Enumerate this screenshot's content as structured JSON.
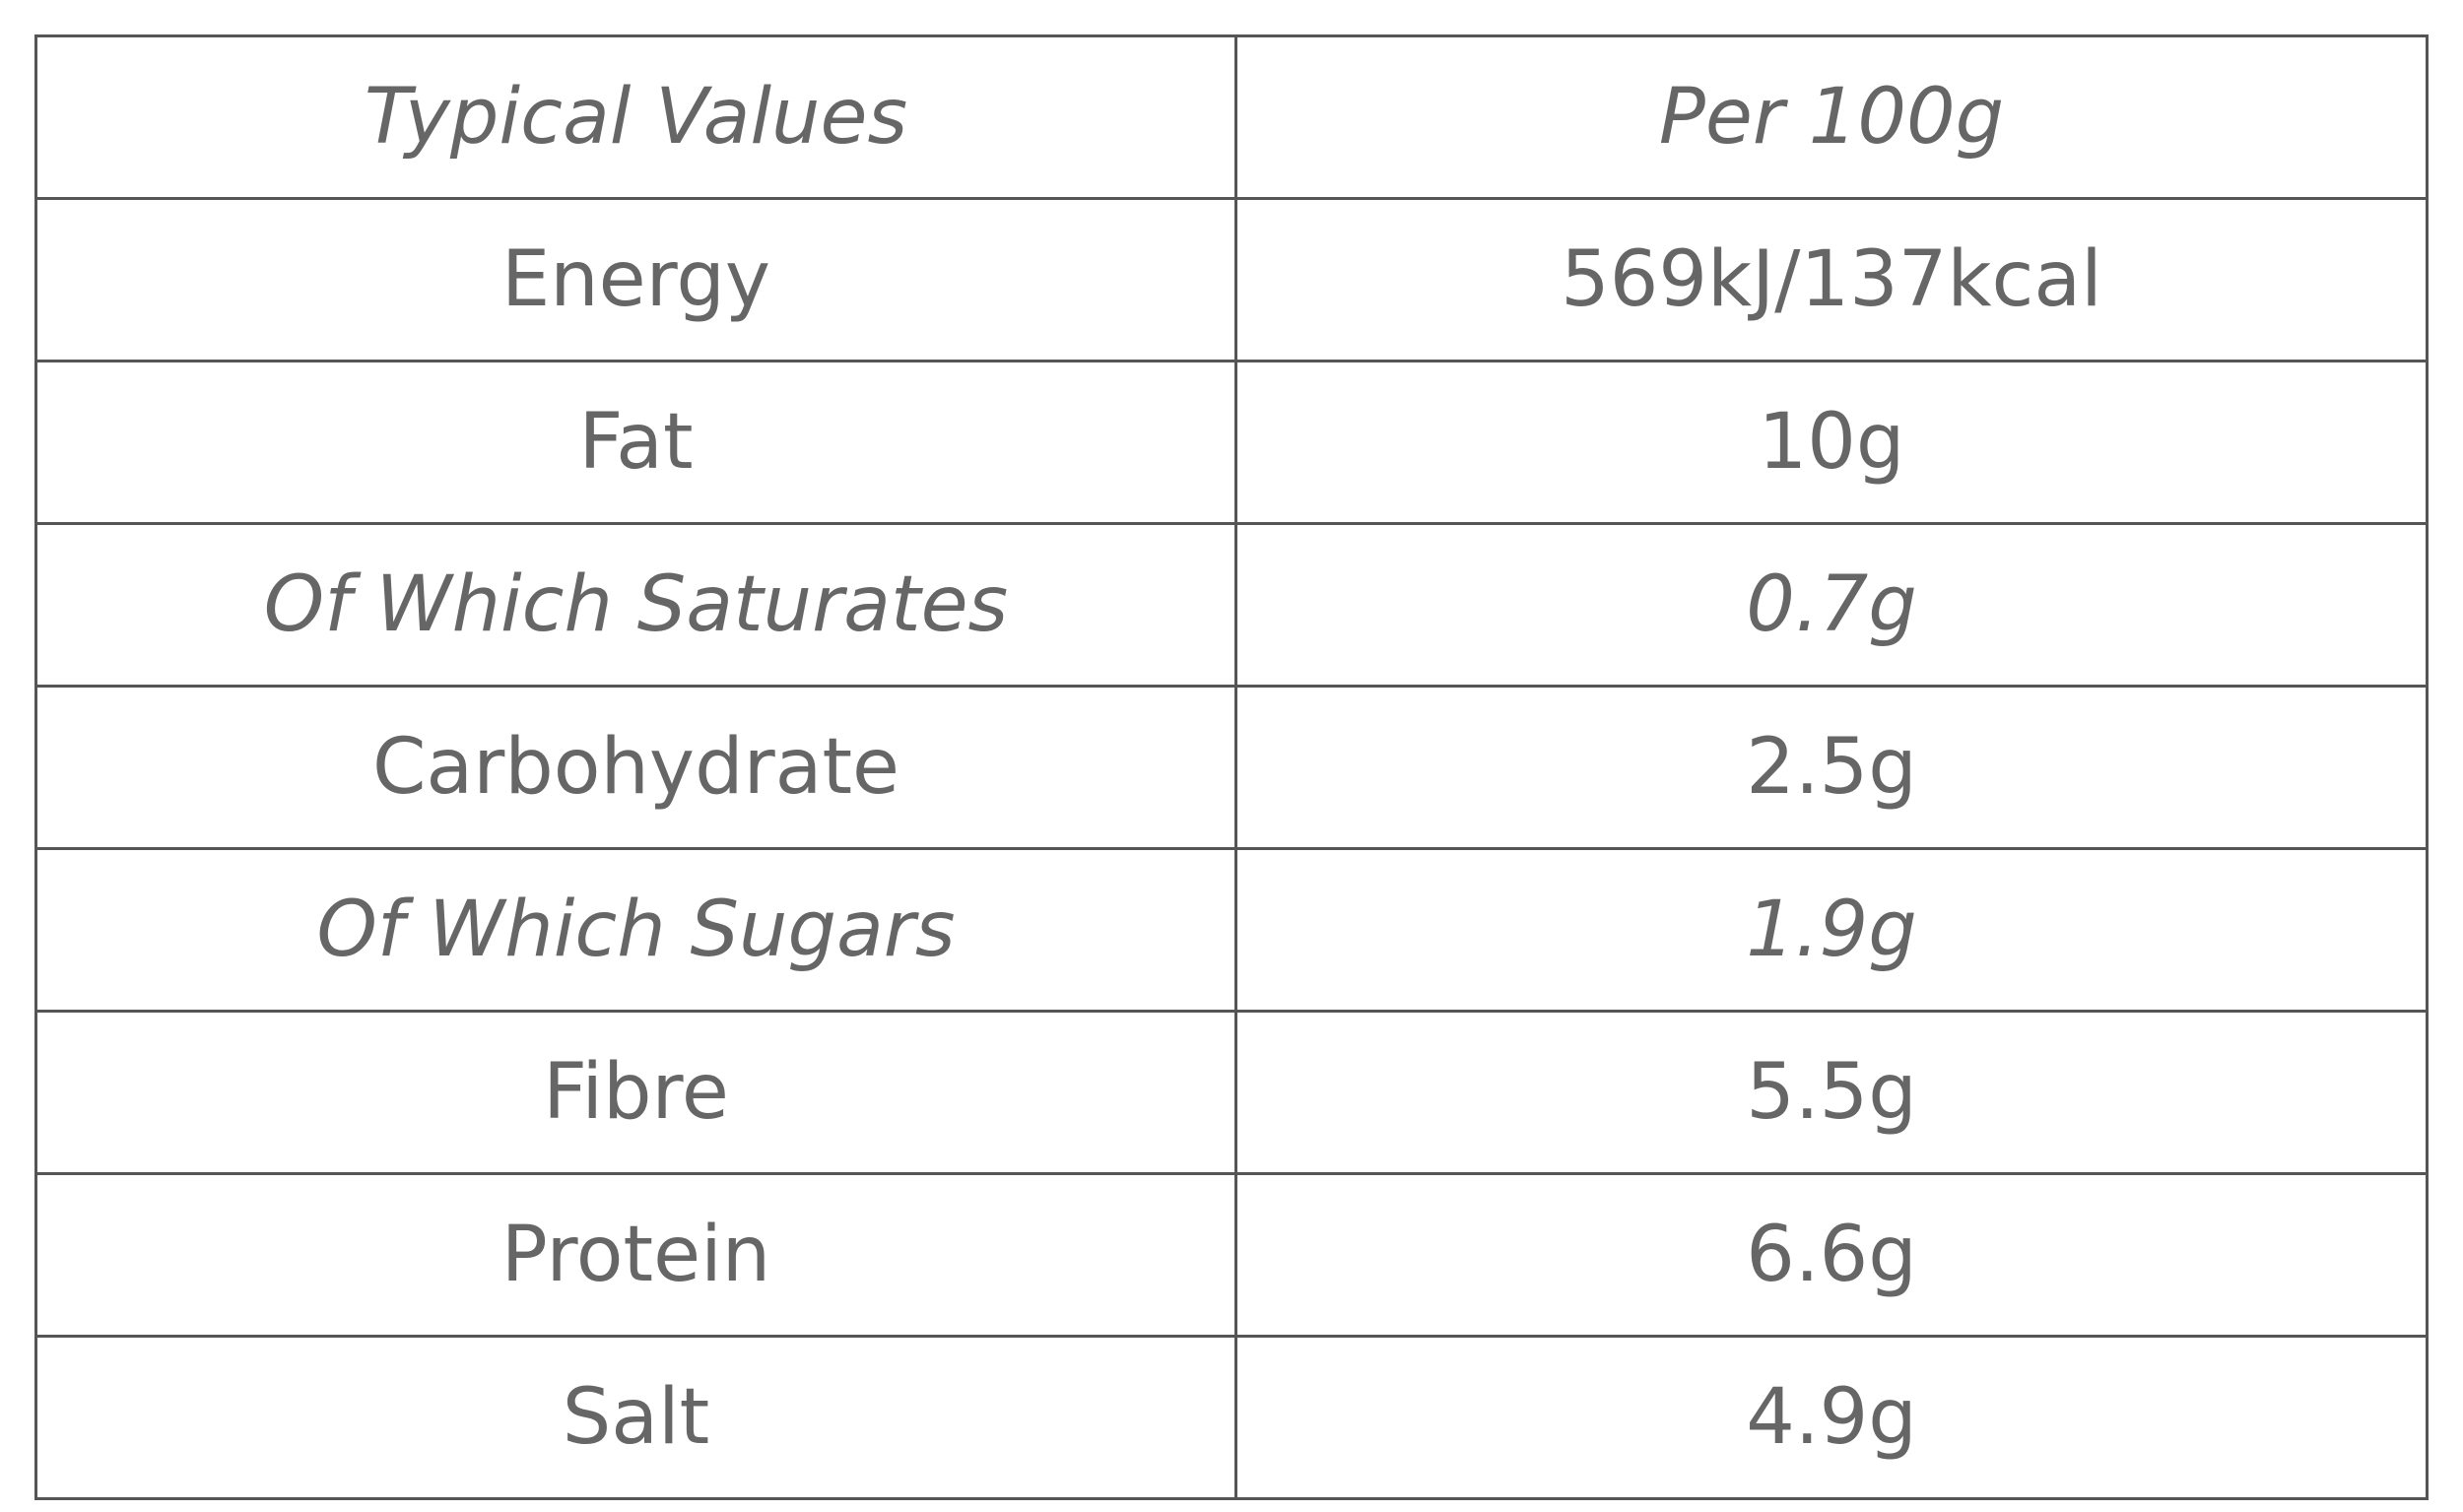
{
  "table": {
    "header": [
      "Typical Values",
      "Per 100g"
    ],
    "rows": [
      [
        "Energy",
        "569kJ/137kcal"
      ],
      [
        "Fat",
        "10g"
      ],
      [
        "Of Which Saturates",
        "0.7g"
      ],
      [
        "Carbohydrate",
        "2.5g"
      ],
      [
        "Of Which Sugars",
        "1.9g"
      ],
      [
        "Fibre",
        "5.5g"
      ],
      [
        "Protein",
        "6.6g"
      ],
      [
        "Salt",
        "4.9g"
      ]
    ]
  }
}
